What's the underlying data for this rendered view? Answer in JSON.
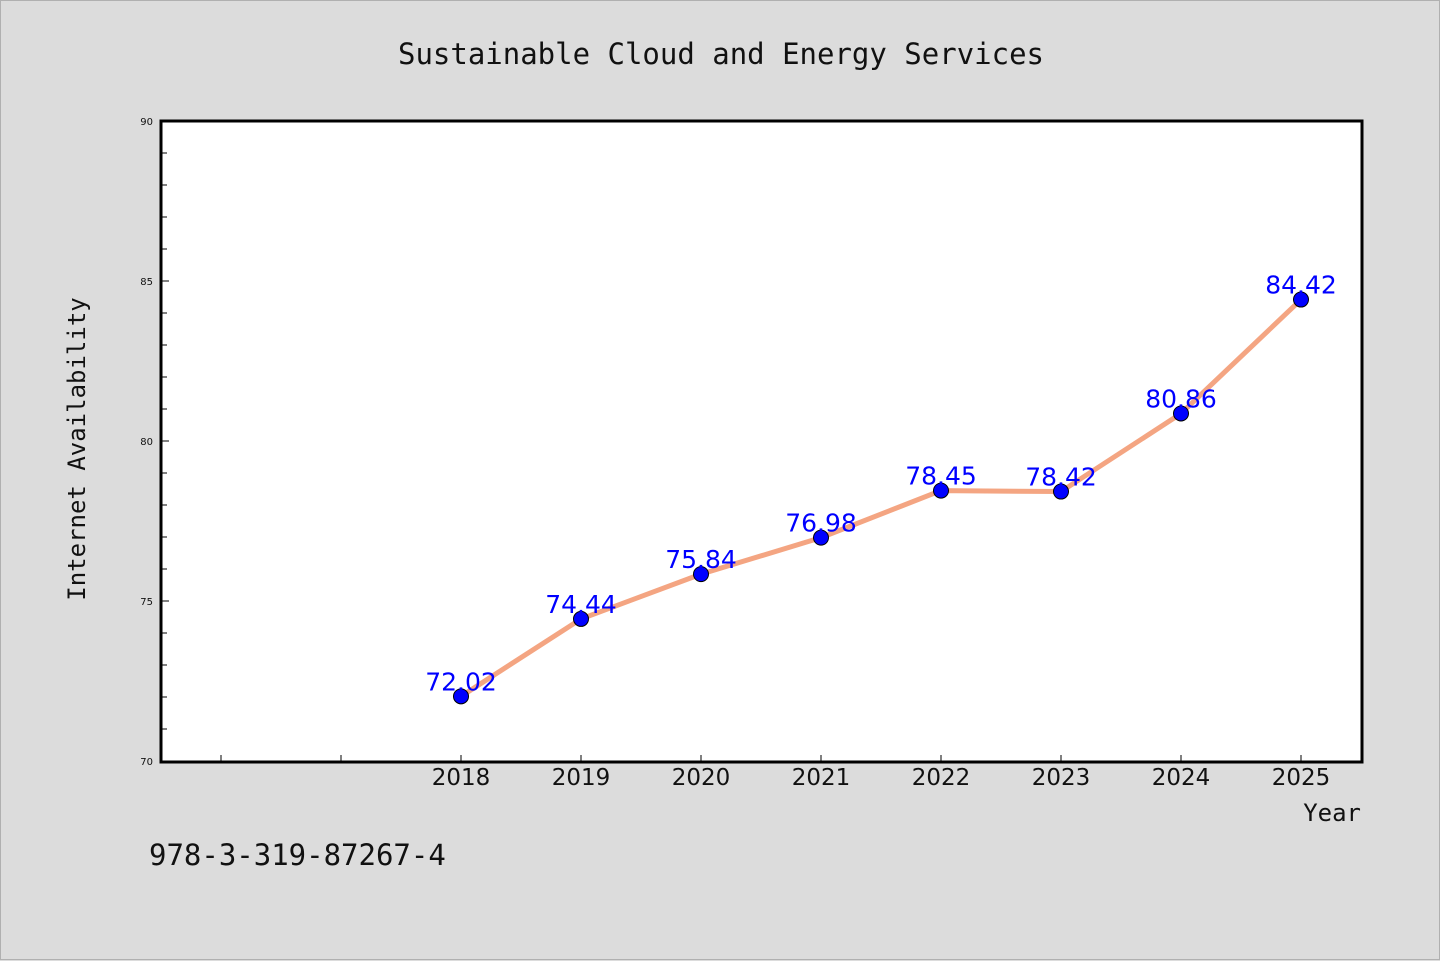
{
  "chart_data": {
    "type": "line",
    "title": "Sustainable Cloud and Energy Services",
    "xlabel": "Year",
    "ylabel": "Internet Availability",
    "categories": [
      "2018",
      "2019",
      "2020",
      "2021",
      "2022",
      "2023",
      "2024",
      "2025"
    ],
    "series": [
      {
        "values": [
          72.02,
          74.44,
          75.84,
          76.98,
          78.45,
          78.42,
          80.86,
          84.42
        ],
        "data_labels": [
          "72.02",
          "74.44",
          "75.84",
          "76.98",
          "78.45",
          "78.42",
          "80.86",
          "84.42"
        ],
        "line_color": "#f4a582",
        "marker_color": "#0000ff"
      }
    ],
    "ylim": [
      70,
      90
    ],
    "yticks": [
      "70",
      "75",
      "80",
      "85",
      "90"
    ],
    "grid": false,
    "legend": "none"
  },
  "footer_text": "978-3-319-87267-4",
  "colors": {
    "background": "#dcdcdc",
    "plot_background": "#ffffff",
    "label_color": "#0000ff"
  }
}
